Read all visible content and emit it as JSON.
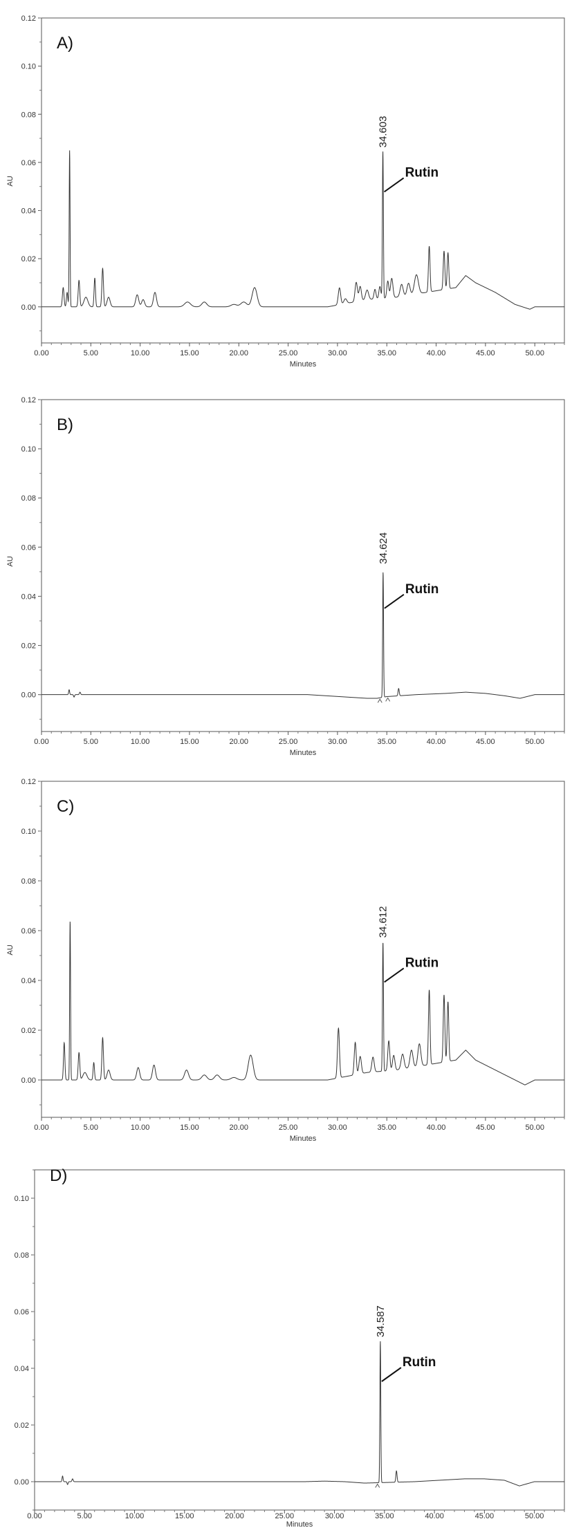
{
  "chart_data": [
    {
      "type": "line",
      "panel_label": "A)",
      "xlabel": "Minutes",
      "ylabel": "AU",
      "xlim": [
        0,
        53
      ],
      "ylim": [
        -0.015,
        0.12
      ],
      "xticks": [
        "0.00",
        "5.00",
        "10.00",
        "15.00",
        "20.00",
        "25.00",
        "30.00",
        "35.00",
        "40.00",
        "45.00",
        "50.00"
      ],
      "yticks": [
        "0.00",
        "0.02",
        "0.04",
        "0.06",
        "0.08",
        "0.10",
        "0.12"
      ],
      "peak_label": {
        "rt": "34.603",
        "x": 34.603,
        "y": 0.065,
        "name": "Rutin"
      },
      "baseline": [
        [
          0,
          0.0
        ],
        [
          2,
          0.0
        ],
        [
          20,
          0.0
        ],
        [
          29,
          0.0
        ],
        [
          33,
          0.003
        ],
        [
          36,
          0.004
        ],
        [
          39,
          0.006
        ],
        [
          42,
          0.008
        ],
        [
          43,
          0.013
        ],
        [
          44,
          0.01
        ],
        [
          46,
          0.006
        ],
        [
          48,
          0.001
        ],
        [
          49.5,
          -0.001
        ],
        [
          50,
          0.0
        ],
        [
          53,
          0.0
        ]
      ],
      "peaks": [
        [
          2.2,
          0.008,
          0.08
        ],
        [
          2.6,
          0.006,
          0.07
        ],
        [
          2.85,
          0.065,
          0.045
        ],
        [
          3.8,
          0.011,
          0.08
        ],
        [
          4.5,
          0.004,
          0.2
        ],
        [
          5.4,
          0.012,
          0.07
        ],
        [
          6.2,
          0.016,
          0.08
        ],
        [
          6.8,
          0.004,
          0.15
        ],
        [
          9.7,
          0.005,
          0.15
        ],
        [
          10.3,
          0.003,
          0.15
        ],
        [
          11.5,
          0.006,
          0.15
        ],
        [
          14.8,
          0.002,
          0.3
        ],
        [
          16.5,
          0.002,
          0.25
        ],
        [
          19.5,
          0.001,
          0.3
        ],
        [
          20.5,
          0.002,
          0.3
        ],
        [
          21.6,
          0.008,
          0.25
        ],
        [
          30.2,
          0.007,
          0.12
        ],
        [
          30.8,
          0.002,
          0.15
        ],
        [
          31.9,
          0.008,
          0.12
        ],
        [
          32.3,
          0.006,
          0.12
        ],
        [
          33,
          0.004,
          0.15
        ],
        [
          33.8,
          0.004,
          0.1
        ],
        [
          34.3,
          0.005,
          0.1
        ],
        [
          34.603,
          0.061,
          0.05
        ],
        [
          35.1,
          0.007,
          0.1
        ],
        [
          35.5,
          0.008,
          0.12
        ],
        [
          36.5,
          0.005,
          0.15
        ],
        [
          37.2,
          0.005,
          0.15
        ],
        [
          38,
          0.008,
          0.2
        ],
        [
          39.3,
          0.019,
          0.08
        ],
        [
          40.8,
          0.016,
          0.08
        ],
        [
          41.2,
          0.015,
          0.08
        ]
      ],
      "markers": []
    },
    {
      "type": "line",
      "panel_label": "B)",
      "xlabel": "Minutes",
      "ylabel": "AU",
      "xlim": [
        0,
        53
      ],
      "ylim": [
        -0.015,
        0.12
      ],
      "xticks": [
        "0.00",
        "5.00",
        "10.00",
        "15.00",
        "20.00",
        "25.00",
        "30.00",
        "35.00",
        "40.00",
        "45.00",
        "50.00"
      ],
      "yticks": [
        "0.00",
        "0.02",
        "0.04",
        "0.06",
        "0.08",
        "0.10",
        "0.12"
      ],
      "peak_label": {
        "rt": "34.624",
        "x": 34.624,
        "y": 0.052,
        "name": "Rutin"
      },
      "baseline": [
        [
          0,
          0.0
        ],
        [
          27,
          0.0
        ],
        [
          29,
          -0.0005
        ],
        [
          31,
          -0.001
        ],
        [
          33,
          -0.0015
        ],
        [
          34,
          -0.0015
        ],
        [
          35,
          -0.0008
        ],
        [
          38,
          0.0
        ],
        [
          41,
          0.0005
        ],
        [
          43,
          0.001
        ],
        [
          45,
          0.0005
        ],
        [
          47,
          -0.0005
        ],
        [
          48.5,
          -0.0015
        ],
        [
          50,
          0.0
        ],
        [
          53,
          0.0
        ]
      ],
      "peaks": [
        [
          2.8,
          0.002,
          0.05
        ],
        [
          3.3,
          -0.001,
          0.05
        ],
        [
          3.9,
          0.001,
          0.06
        ],
        [
          34.624,
          0.051,
          0.045
        ],
        [
          36.2,
          0.003,
          0.06
        ]
      ],
      "markers": [
        34.3,
        35.1
      ]
    },
    {
      "type": "line",
      "panel_label": "C)",
      "xlabel": "Minutes",
      "ylabel": "AU",
      "xlim": [
        0,
        53
      ],
      "ylim": [
        -0.015,
        0.12
      ],
      "xticks": [
        "0.00",
        "5.00",
        "10.00",
        "15.00",
        "20.00",
        "25.00",
        "30.00",
        "35.00",
        "40.00",
        "45.00",
        "50.00"
      ],
      "yticks": [
        "0.00",
        "0.02",
        "0.04",
        "0.06",
        "0.08",
        "0.10",
        "0.12"
      ],
      "peak_label": {
        "rt": "34.612",
        "x": 34.612,
        "y": 0.056,
        "name": "Rutin"
      },
      "baseline": [
        [
          0,
          0.0
        ],
        [
          20,
          0.0
        ],
        [
          29,
          0.0
        ],
        [
          33,
          0.003
        ],
        [
          36,
          0.004
        ],
        [
          39,
          0.006
        ],
        [
          42,
          0.008
        ],
        [
          43,
          0.012
        ],
        [
          44,
          0.008
        ],
        [
          46,
          0.004
        ],
        [
          48,
          0.0
        ],
        [
          49,
          -0.002
        ],
        [
          50,
          0.0
        ],
        [
          53,
          0.0
        ]
      ],
      "peaks": [
        [
          2.3,
          0.015,
          0.07
        ],
        [
          2.9,
          0.064,
          0.045
        ],
        [
          3.8,
          0.011,
          0.08
        ],
        [
          4.4,
          0.003,
          0.2
        ],
        [
          5.3,
          0.007,
          0.07
        ],
        [
          6.2,
          0.017,
          0.08
        ],
        [
          6.8,
          0.004,
          0.15
        ],
        [
          9.8,
          0.005,
          0.15
        ],
        [
          11.4,
          0.006,
          0.15
        ],
        [
          14.7,
          0.004,
          0.2
        ],
        [
          16.5,
          0.002,
          0.25
        ],
        [
          17.8,
          0.002,
          0.25
        ],
        [
          19.5,
          0.001,
          0.3
        ],
        [
          21.2,
          0.01,
          0.25
        ],
        [
          30.1,
          0.02,
          0.1
        ],
        [
          31.8,
          0.013,
          0.1
        ],
        [
          32.3,
          0.007,
          0.12
        ],
        [
          33.6,
          0.006,
          0.12
        ],
        [
          34.612,
          0.052,
          0.05
        ],
        [
          35.2,
          0.012,
          0.1
        ],
        [
          35.7,
          0.006,
          0.12
        ],
        [
          36.6,
          0.006,
          0.15
        ],
        [
          37.5,
          0.007,
          0.15
        ],
        [
          38.3,
          0.009,
          0.15
        ],
        [
          39.3,
          0.03,
          0.08
        ],
        [
          40.8,
          0.027,
          0.08
        ],
        [
          41.2,
          0.024,
          0.08
        ]
      ],
      "markers": []
    },
    {
      "type": "line",
      "panel_label": "D)",
      "xlabel": "Minutes",
      "ylabel": "",
      "xlim": [
        0,
        53
      ],
      "ylim": [
        -0.01,
        0.11
      ],
      "xticks": [
        "0.00",
        "5.00",
        "10.00",
        "15.00",
        "20.00",
        "25.00",
        "30.00",
        "35.00",
        "40.00",
        "45.00",
        "50.00"
      ],
      "yticks": [
        "0.00",
        "0.02",
        "0.04",
        "0.06",
        "0.08",
        "0.10"
      ],
      "peak_label": {
        "rt": "34.587",
        "x": 34.587,
        "y": 0.05,
        "name": "Rutin"
      },
      "baseline": [
        [
          0,
          0.0
        ],
        [
          27,
          0.0
        ],
        [
          29,
          0.0002
        ],
        [
          31,
          0.0
        ],
        [
          33,
          -0.0005
        ],
        [
          35,
          -0.0003
        ],
        [
          38,
          0.0
        ],
        [
          41,
          0.0006
        ],
        [
          43,
          0.001
        ],
        [
          45,
          0.001
        ],
        [
          47,
          0.0005
        ],
        [
          48.5,
          -0.0015
        ],
        [
          50,
          0.0
        ],
        [
          53,
          0.0
        ]
      ],
      "peaks": [
        [
          2.8,
          0.002,
          0.05
        ],
        [
          3.3,
          -0.001,
          0.05
        ],
        [
          3.8,
          0.001,
          0.06
        ],
        [
          34.587,
          0.05,
          0.045
        ],
        [
          36.2,
          0.004,
          0.06
        ]
      ],
      "markers": [
        34.3
      ]
    }
  ]
}
